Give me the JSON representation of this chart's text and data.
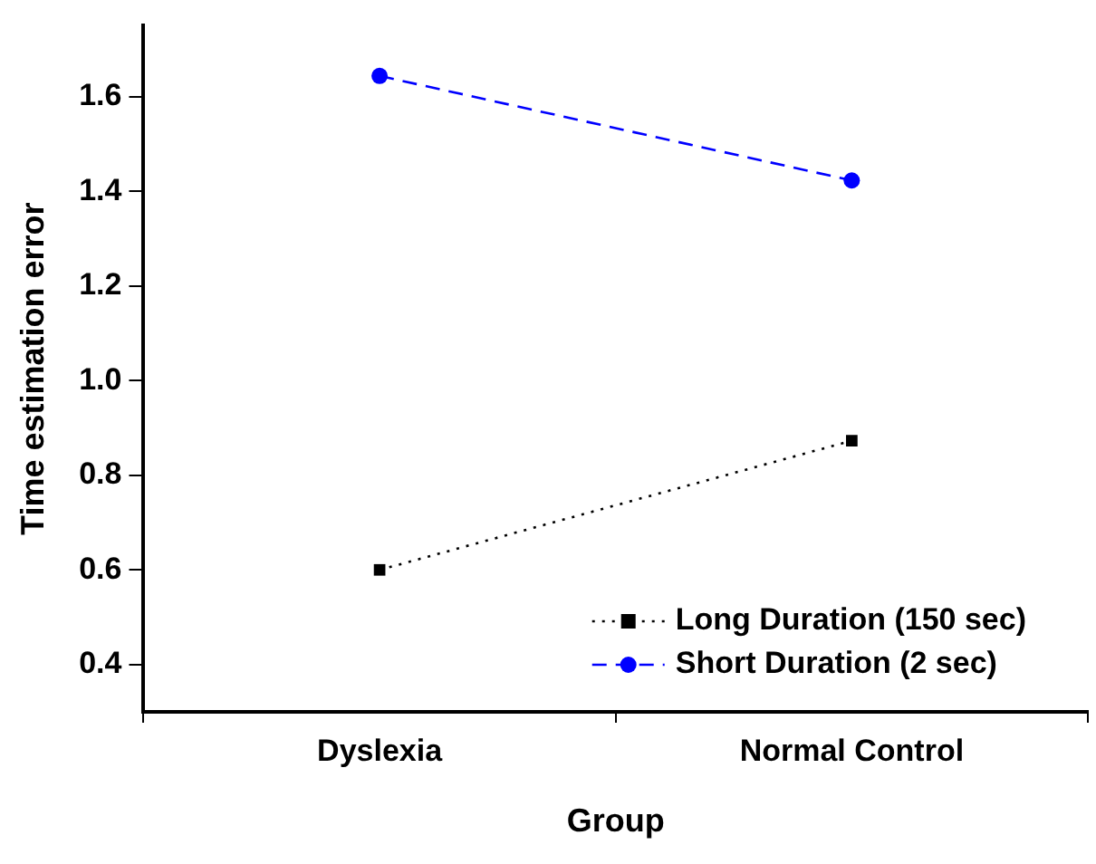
{
  "chart_data": {
    "type": "line",
    "xlabel": "Group",
    "ylabel": "Time estimation error",
    "categories": [
      "Dyslexia",
      "Normal Control"
    ],
    "series": [
      {
        "name": "Long Duration (150 sec)",
        "color": "#000000",
        "values": [
          0.6,
          0.873
        ],
        "marker": "square",
        "line_style": "dotted"
      },
      {
        "name": "Short Duration (2 sec)",
        "color": "#0000ff",
        "values": [
          1.644,
          1.423
        ],
        "marker": "circle",
        "line_style": "dashed"
      }
    ],
    "ylim": [
      0.3,
      1.75
    ],
    "yticks": [
      0.4,
      0.6,
      0.8,
      {
        "value": 1,
        "label": "1.0"
      },
      1.2,
      1.4,
      1.6
    ],
    "grid": false,
    "legend": "bottom right"
  }
}
